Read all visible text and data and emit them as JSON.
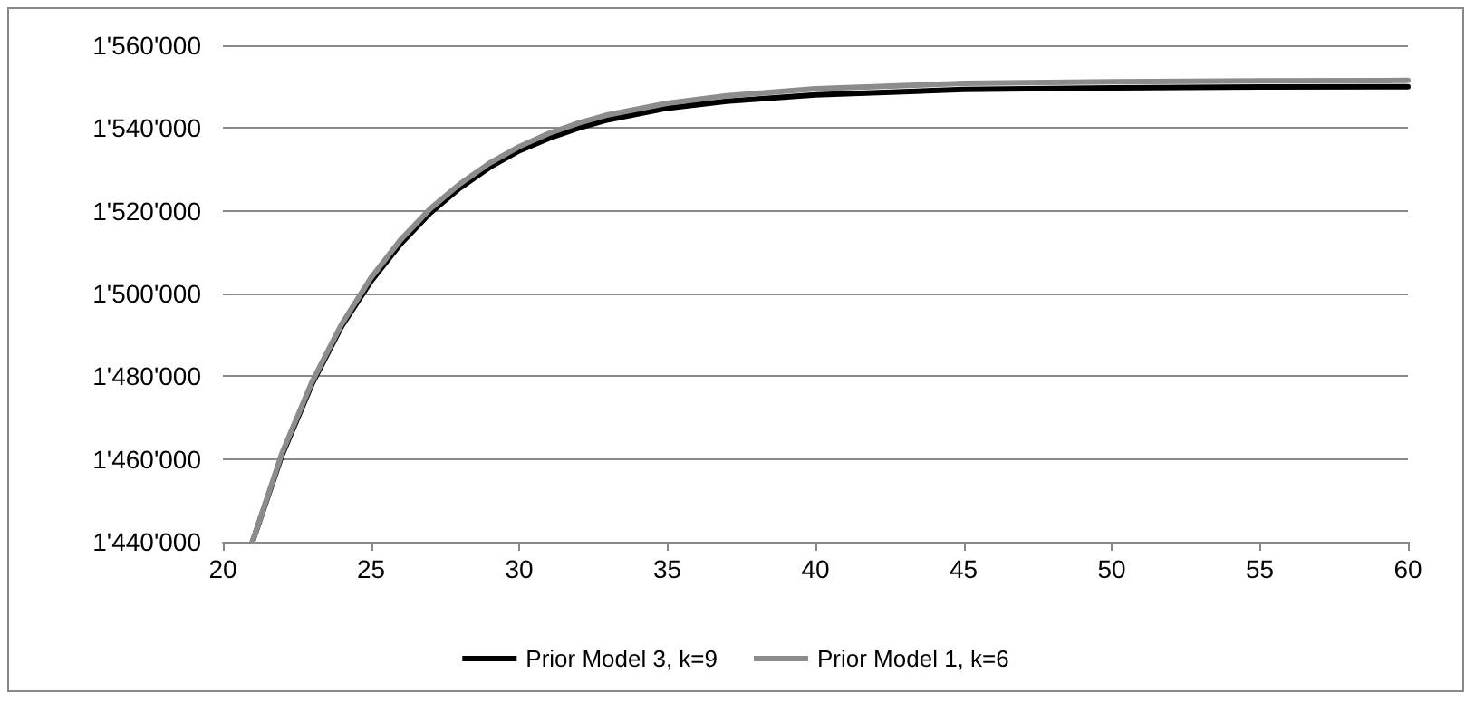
{
  "chart_data": {
    "type": "line",
    "xlim": [
      20,
      60
    ],
    "xticks": [
      20,
      25,
      30,
      35,
      40,
      45,
      50,
      55,
      60
    ],
    "ylim": [
      1440000,
      1560000
    ],
    "yticks": [
      {
        "value": 1440000,
        "label": "1'440'000"
      },
      {
        "value": 1460000,
        "label": "1'460'000"
      },
      {
        "value": 1480000,
        "label": "1'480'000"
      },
      {
        "value": 1500000,
        "label": "1'500'000"
      },
      {
        "value": 1520000,
        "label": "1'520'000"
      },
      {
        "value": 1540000,
        "label": "1'540'000"
      },
      {
        "value": 1560000,
        "label": "1'560'000"
      }
    ],
    "grid": "y",
    "legend": "bottom",
    "marker": "none",
    "line_style": "solid",
    "series": [
      {
        "name": "Prior Model 3, k=9",
        "color": "#000000",
        "x": [
          21,
          22,
          23,
          24,
          25,
          26,
          27,
          28,
          29,
          30,
          31,
          32,
          33,
          35,
          37,
          40,
          45,
          50,
          55,
          60
        ],
        "values": [
          1440000,
          1461000,
          1478000,
          1492000,
          1503000,
          1512000,
          1519500,
          1525500,
          1530500,
          1534500,
          1537500,
          1540000,
          1542000,
          1544800,
          1546500,
          1548000,
          1549300,
          1549700,
          1549900,
          1550000
        ]
      },
      {
        "name": "Prior Model 1, k=6",
        "color": "#8c8c8c",
        "x": [
          21,
          22,
          23,
          24,
          25,
          26,
          27,
          28,
          29,
          30,
          31,
          32,
          33,
          35,
          37,
          40,
          45,
          50,
          55,
          60
        ],
        "values": [
          1440000,
          1461500,
          1478500,
          1492500,
          1503800,
          1513000,
          1520500,
          1526500,
          1531500,
          1535500,
          1538700,
          1541200,
          1543200,
          1546000,
          1547800,
          1549500,
          1550800,
          1551200,
          1551400,
          1551500
        ]
      }
    ]
  }
}
